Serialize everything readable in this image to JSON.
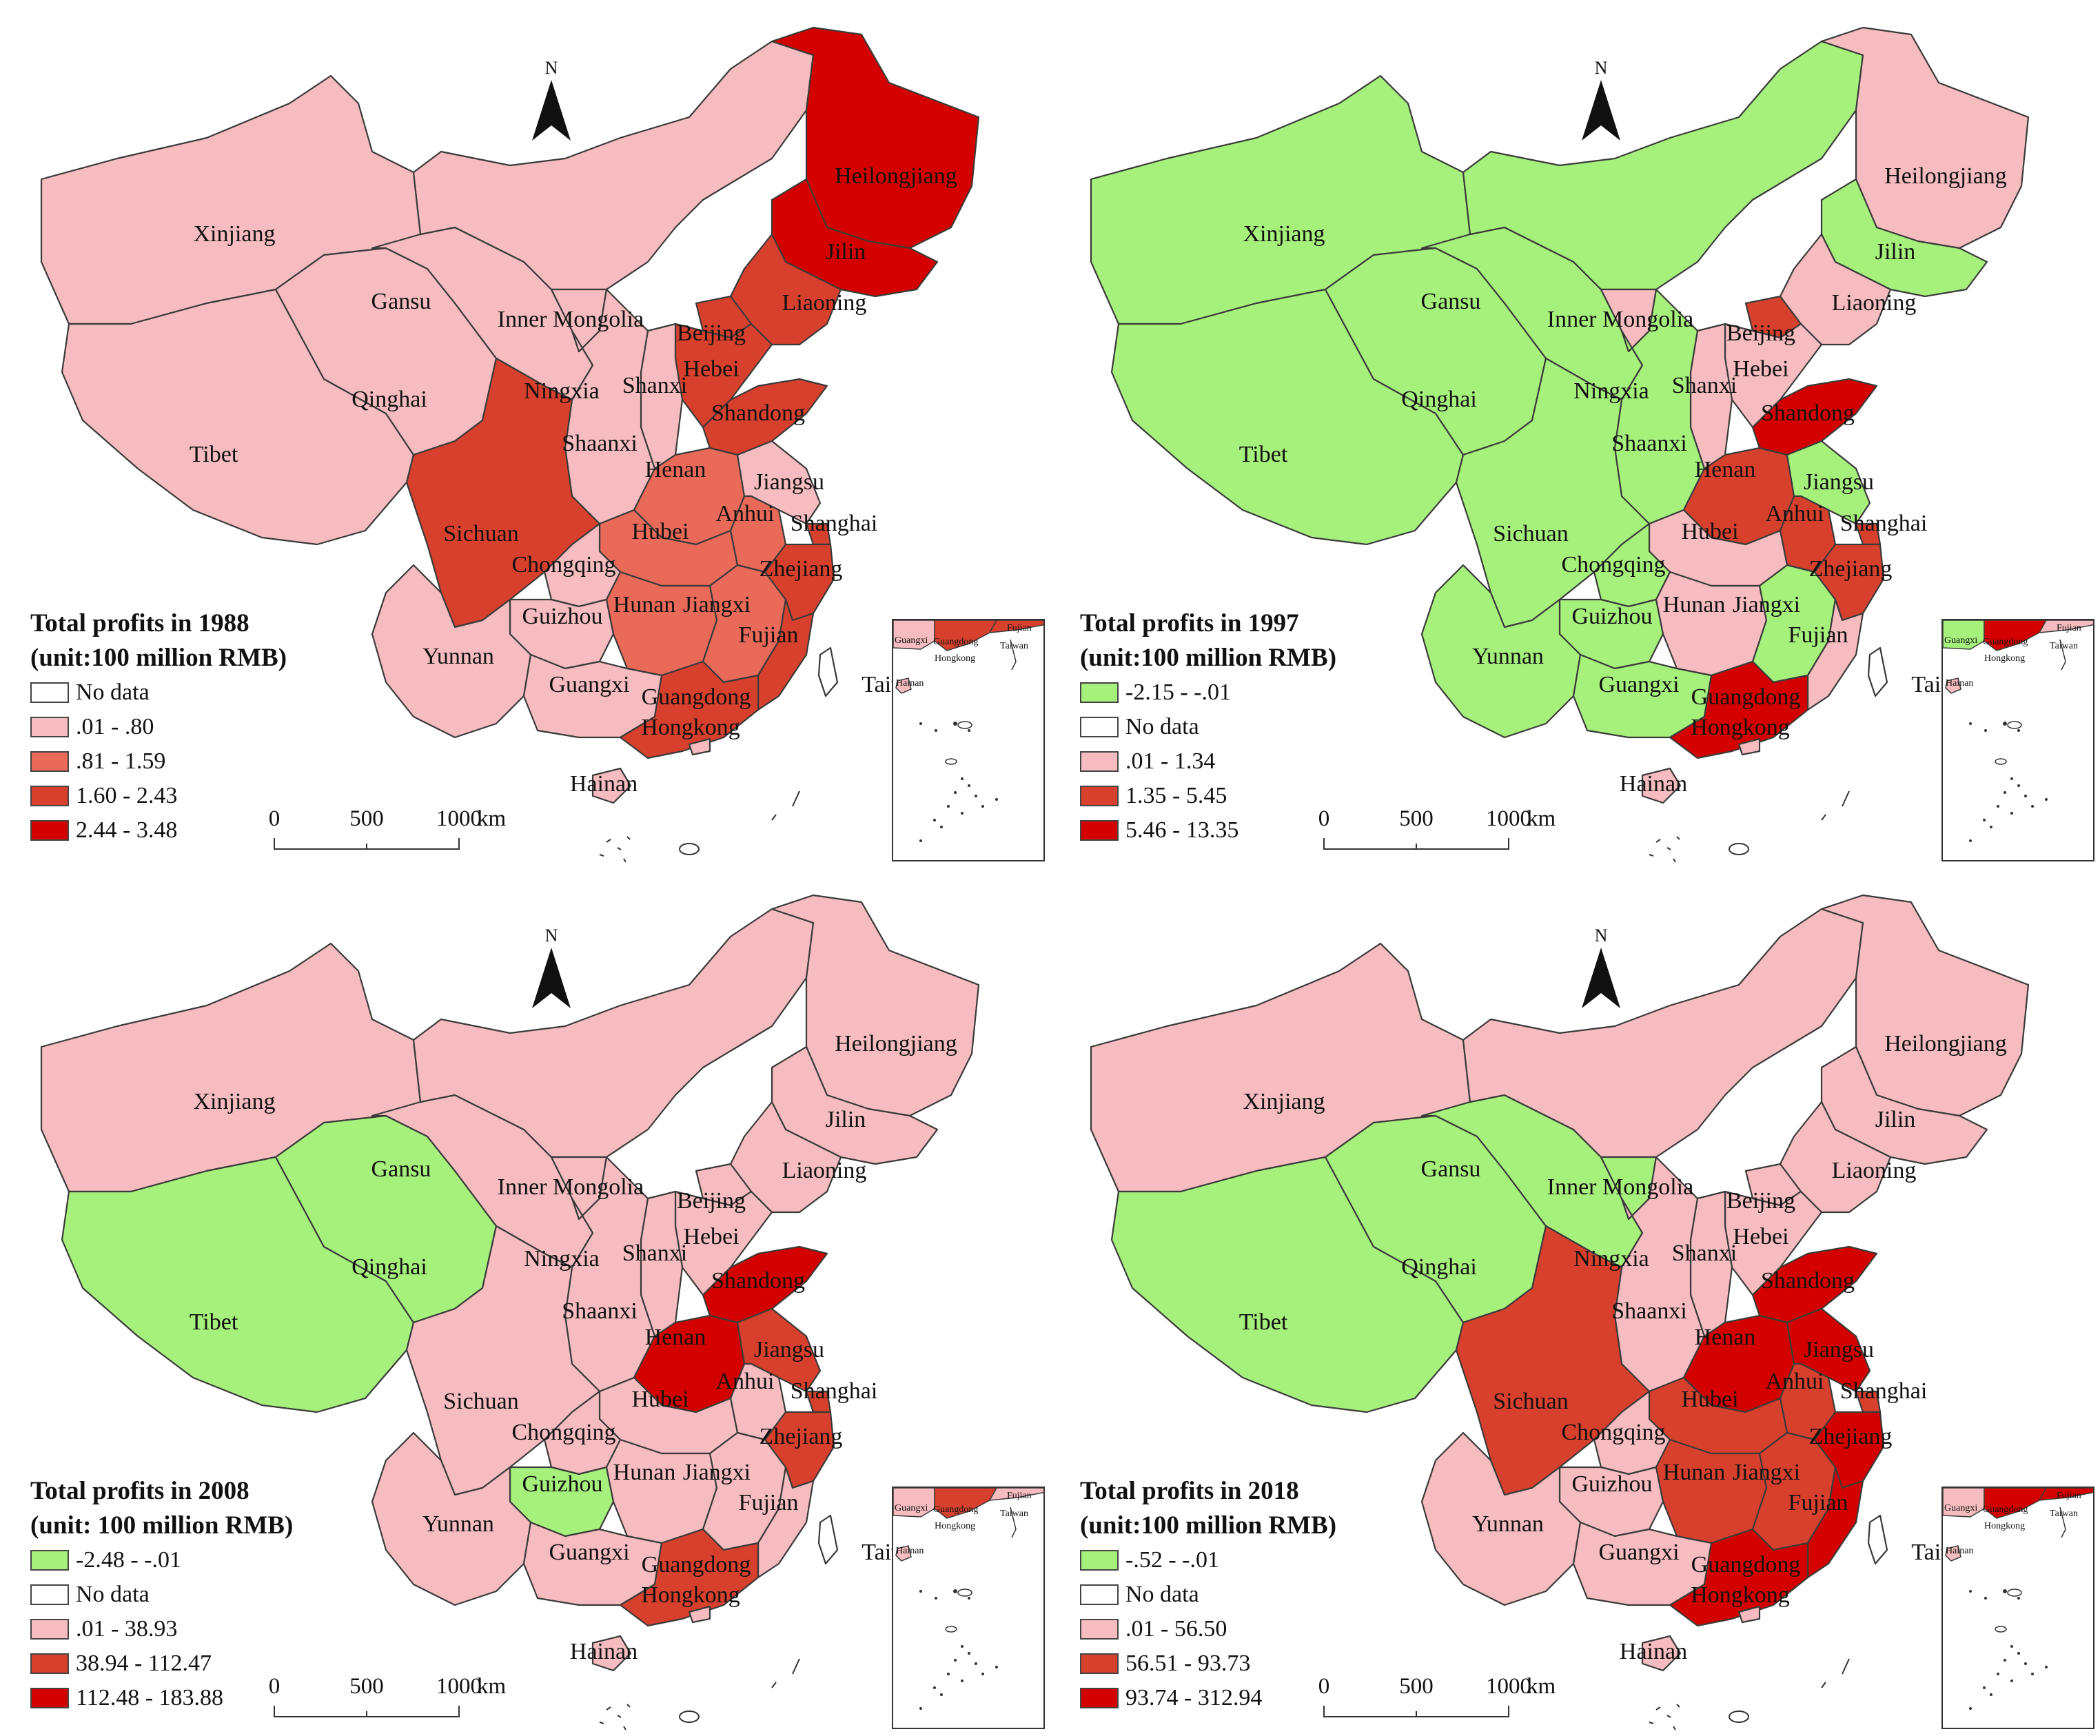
{
  "colors": {
    "no_data": "#ffffff",
    "neg": "#a6f07c",
    "c1": "#f6bcbf",
    "c2": "#ea6a5a",
    "c3": "#d8402e",
    "c4": "#d40000",
    "border": "#3a3a3a"
  },
  "north_label": "N",
  "scale": {
    "labels": [
      "0",
      "500",
      "1000"
    ],
    "unit": "km"
  },
  "inset_labels": {
    "guangxi": "Guangxi",
    "guangdong": "Guangdong",
    "fujian": "Fujian",
    "taiwan": "Taiwan",
    "hainan": "Hainan",
    "hongkong": "Hongkong"
  },
  "panels": [
    {
      "title1": "Total profits in 1988",
      "title2": "(unit:100 million RMB)",
      "legend": [
        {
          "label": "No data",
          "color": "no_data"
        },
        {
          "label": ".01 - .80",
          "color": "c1"
        },
        {
          "label": ".81 - 1.59",
          "color": "c2"
        },
        {
          "label": "1.60 - 2.43",
          "color": "c3"
        },
        {
          "label": "2.44 - 3.48",
          "color": "c4"
        }
      ],
      "provinces": {
        "xinjiang": "c1",
        "tibet": "c1",
        "qinghai": "c1",
        "gansu": "c1",
        "inner_mongolia": "c1",
        "heilongjiang": "c4",
        "jilin": "c4",
        "liaoning": "c3",
        "beijing": "c3",
        "hebei": "c3",
        "shanxi": "c1",
        "ningxia": "c1",
        "shaanxi": "c1",
        "shandong": "c3",
        "henan": "c2",
        "jiangsu": "c1",
        "anhui": "c2",
        "shanghai": "c3",
        "hubei": "c2",
        "sichuan": "c3",
        "chongqing": "c1",
        "guizhou": "c1",
        "yunnan": "c1",
        "hunan": "c2",
        "jiangxi": "c2",
        "zhejiang": "c3",
        "fujian": "c3",
        "guangxi": "c1",
        "guangdong": "c3",
        "hongkong": "c1",
        "hainan": "c1",
        "taiwan": "no_data"
      }
    },
    {
      "title1": "Total profits in 1997",
      "title2": "(unit:100 million RMB)",
      "legend": [
        {
          "label": "-2.15 - -.01",
          "color": "neg"
        },
        {
          "label": "No data",
          "color": "no_data"
        },
        {
          "label": ".01 - 1.34",
          "color": "c1"
        },
        {
          "label": "1.35 - 5.45",
          "color": "c3"
        },
        {
          "label": "5.46 - 13.35",
          "color": "c4"
        }
      ],
      "provinces": {
        "xinjiang": "neg",
        "tibet": "neg",
        "qinghai": "neg",
        "gansu": "neg",
        "inner_mongolia": "neg",
        "heilongjiang": "c1",
        "jilin": "neg",
        "liaoning": "c1",
        "beijing": "c3",
        "hebei": "c1",
        "shanxi": "c1",
        "ningxia": "c1",
        "shaanxi": "neg",
        "shandong": "c4",
        "henan": "c3",
        "jiangsu": "neg",
        "anhui": "c3",
        "shanghai": "c3",
        "hubei": "c1",
        "sichuan": "neg",
        "chongqing": "neg",
        "guizhou": "neg",
        "yunnan": "neg",
        "hunan": "c1",
        "jiangxi": "neg",
        "zhejiang": "c3",
        "fujian": "c1",
        "guangxi": "neg",
        "guangdong": "c4",
        "hongkong": "c1",
        "hainan": "c1",
        "taiwan": "no_data"
      }
    },
    {
      "title1": "Total profits in 2008",
      "title2": "(unit: 100 million RMB)",
      "legend": [
        {
          "label": "-2.48 - -.01",
          "color": "neg"
        },
        {
          "label": "No data",
          "color": "no_data"
        },
        {
          "label": ".01 - 38.93",
          "color": "c1"
        },
        {
          "label": "38.94 - 112.47",
          "color": "c3"
        },
        {
          "label": "112.48 - 183.88",
          "color": "c4"
        }
      ],
      "provinces": {
        "xinjiang": "c1",
        "tibet": "neg",
        "qinghai": "neg",
        "gansu": "c1",
        "inner_mongolia": "c1",
        "heilongjiang": "c1",
        "jilin": "c1",
        "liaoning": "c1",
        "beijing": "c1",
        "hebei": "c1",
        "shanxi": "c1",
        "ningxia": "c1",
        "shaanxi": "c1",
        "shandong": "c4",
        "henan": "c4",
        "jiangsu": "c3",
        "anhui": "c1",
        "shanghai": "c3",
        "hubei": "c1",
        "sichuan": "c1",
        "chongqing": "c1",
        "guizhou": "neg",
        "yunnan": "c1",
        "hunan": "c1",
        "jiangxi": "c1",
        "zhejiang": "c3",
        "fujian": "c1",
        "guangxi": "c1",
        "guangdong": "c3",
        "hongkong": "c1",
        "hainan": "c1",
        "taiwan": "no_data"
      }
    },
    {
      "title1": "Total profits in 2018",
      "title2": "(unit:100 million RMB)",
      "legend": [
        {
          "label": "-.52 - -.01",
          "color": "neg"
        },
        {
          "label": "No data",
          "color": "no_data"
        },
        {
          "label": ".01 - 56.50",
          "color": "c1"
        },
        {
          "label": "56.51 - 93.73",
          "color": "c3"
        },
        {
          "label": "93.74 - 312.94",
          "color": "c4"
        }
      ],
      "provinces": {
        "xinjiang": "c1",
        "tibet": "neg",
        "qinghai": "neg",
        "gansu": "neg",
        "inner_mongolia": "c1",
        "heilongjiang": "c1",
        "jilin": "c1",
        "liaoning": "c1",
        "beijing": "c1",
        "hebei": "c1",
        "shanxi": "c1",
        "ningxia": "neg",
        "shaanxi": "c1",
        "shandong": "c4",
        "henan": "c4",
        "jiangsu": "c4",
        "anhui": "c3",
        "shanghai": "c3",
        "hubei": "c3",
        "sichuan": "c3",
        "chongqing": "c1",
        "guizhou": "c1",
        "yunnan": "c1",
        "hunan": "c3",
        "jiangxi": "c3",
        "zhejiang": "c4",
        "fujian": "c4",
        "guangxi": "c1",
        "guangdong": "c4",
        "hongkong": "c1",
        "hainan": "c1",
        "taiwan": "no_data"
      }
    }
  ],
  "province_labels": {
    "xinjiang": "Xinjiang",
    "tibet": "Tibet",
    "qinghai": "Qinghai",
    "gansu": "Gansu",
    "inner_mongolia": "Inner Mongolia",
    "heilongjiang": "Heilongjiang",
    "jilin": "Jilin",
    "liaoning": "Liaoning",
    "beijing": "Beijing",
    "hebei": "Hebei",
    "shanxi": "Shanxi",
    "ningxia": "Ningxia",
    "shaanxi": "Shaanxi",
    "shandong": "Shandong",
    "henan": "Henan",
    "jiangsu": "Jiangsu",
    "anhui": "Anhui",
    "shanghai": "Shanghai",
    "hubei": "Hubei",
    "sichuan": "Sichuan",
    "chongqing": "Chongqing",
    "guizhou": "Guizhou",
    "yunnan": "Yunnan",
    "hunan": "Hunan",
    "jiangxi": "Jiangxi",
    "zhejiang": "Zhejiang",
    "fujian": "Fujian",
    "guangxi": "Guangxi",
    "guangdong": "Guangdong",
    "hongkong": "Hongkong",
    "hainan": "Hainan",
    "taiwan": "Taiwan"
  }
}
